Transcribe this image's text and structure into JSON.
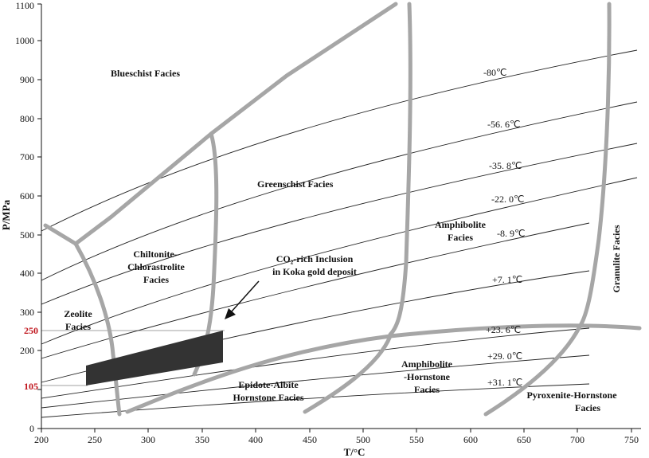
{
  "axes": {
    "xlabel": "T/°C",
    "ylabel": "P/MPa",
    "x_ticks": [
      "200",
      "250",
      "300",
      "350",
      "400",
      "450",
      "500",
      "550",
      "600",
      "650",
      "700",
      "750"
    ],
    "y_ticks": [
      "0",
      "100",
      "200",
      "300",
      "400",
      "500",
      "600",
      "700",
      "800",
      "900",
      "1000",
      "1100"
    ],
    "highlight_ticks": [
      "105",
      "250"
    ],
    "highlight_color": "#c0141c"
  },
  "facies": {
    "blueschist": "Blueschist Facies",
    "greenschist": "Greenschist Facies",
    "chiltonite_1": "Chiltonite–",
    "chiltonite_2": "Chlorastrolite",
    "chiltonite_3": "Facies",
    "zeolite_1": "Zeolite",
    "zeolite_2": "Facies",
    "amphibolite_1": "Amphibolite",
    "amphibolite_2": "Facies",
    "granulite": "Granulite Facies",
    "epidote_1": "Epidote-Albite",
    "epidote_2": "Hornstone Facies",
    "amph_horn_1": "Amphibolite",
    "amph_horn_2": "-Hornstone",
    "amph_horn_3": "Facies",
    "pyroxenite_1": "Pyroxenite-Hornstone",
    "pyroxenite_2": "Facies"
  },
  "inclusion": {
    "label_1": "CO₂-rich Inclusion",
    "label_2": "in Koka gold deposit",
    "fill_color": "#333333"
  },
  "isochores": [
    "-80℃",
    "-56. 6℃",
    "-35. 8℃",
    "-22. 0℃",
    "-8. 9℃",
    "+7. 1℃",
    "+23. 6℃",
    "+29. 0℃",
    "+31. 1℃"
  ],
  "colors": {
    "boundary": "#a6a6a6"
  }
}
